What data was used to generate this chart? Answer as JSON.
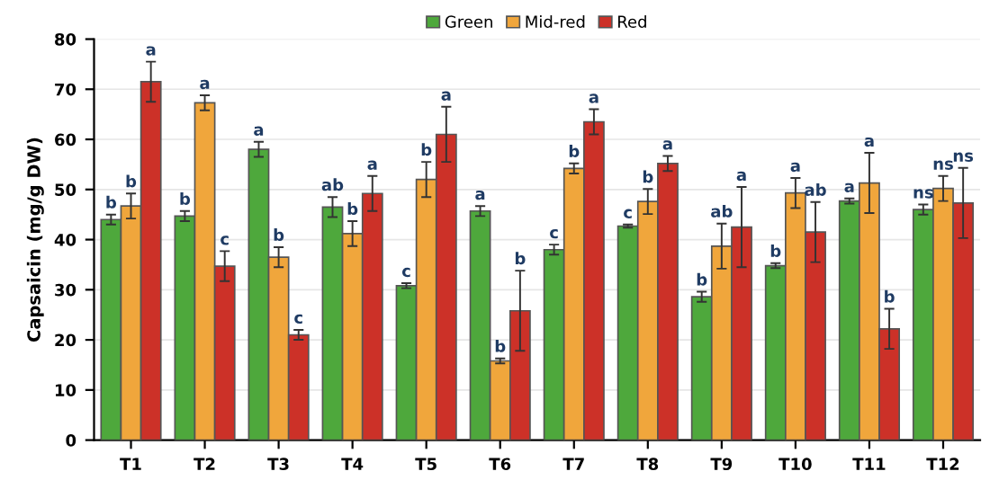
{
  "chart_data": {
    "type": "bar",
    "ylabel": "Capsaicin (mg/g DW)",
    "categories": [
      "T1",
      "T2",
      "T3",
      "T4",
      "T5",
      "T6",
      "T7",
      "T8",
      "T9",
      "T10",
      "T11",
      "T12"
    ],
    "series": [
      {
        "name": "Green",
        "color": "#4ea83c",
        "values": [
          44,
          44.7,
          58,
          46.5,
          30.8,
          45.7,
          38,
          42.7,
          28.6,
          34.8,
          47.7,
          46
        ],
        "errors": [
          1,
          1,
          1.5,
          2,
          0.5,
          1,
          1,
          0.3,
          1,
          0.5,
          0.5,
          1
        ],
        "value_labels": [
          "b",
          "b",
          "a",
          "ab",
          "c",
          "a",
          "c",
          "c",
          "b",
          "b",
          "a",
          "ns"
        ]
      },
      {
        "name": "Mid-red",
        "color": "#f0a63c",
        "values": [
          46.7,
          67.3,
          36.5,
          41.2,
          52,
          15.8,
          54.2,
          47.6,
          38.7,
          49.3,
          51.3,
          50.2
        ],
        "errors": [
          2.5,
          1.5,
          2,
          2.5,
          3.5,
          0.5,
          1,
          2.5,
          4.5,
          3,
          6,
          2.5
        ],
        "value_labels": [
          "b",
          "a",
          "b",
          "b",
          "b",
          "b",
          "b",
          "b",
          "ab",
          "a",
          "a",
          "ns"
        ]
      },
      {
        "name": "Red",
        "color": "#cc3128",
        "values": [
          71.5,
          34.7,
          21,
          49.2,
          61,
          25.8,
          63.5,
          55.2,
          42.5,
          41.5,
          22.2,
          47.3
        ],
        "errors": [
          4,
          3,
          1,
          3.5,
          5.5,
          8,
          2.5,
          1.5,
          8,
          6,
          4,
          7
        ],
        "value_labels": [
          "a",
          "c",
          "c",
          "a",
          "a",
          "b",
          "a",
          "a",
          "a",
          "ab",
          "b",
          "ns"
        ]
      }
    ],
    "ylim": [
      0,
      80
    ],
    "yticks": [
      0,
      10,
      20,
      30,
      40,
      50,
      60,
      70,
      80
    ],
    "grid": "y",
    "legend": "top"
  }
}
